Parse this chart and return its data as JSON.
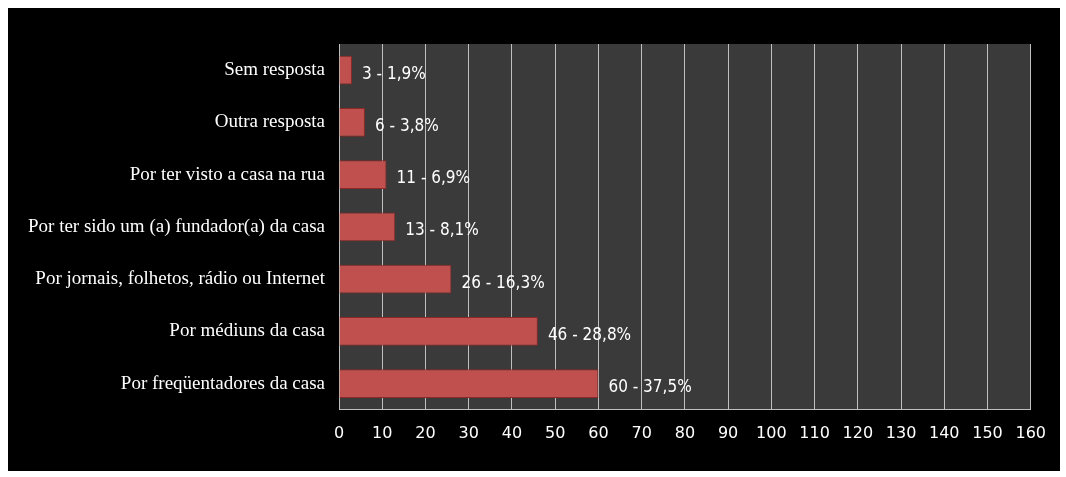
{
  "chart_data": {
    "type": "bar",
    "orientation": "horizontal",
    "categories": [
      "Sem resposta",
      "Outra resposta",
      "Por ter visto a casa na rua",
      "Por ter sido um (a) fundador(a) da casa",
      "Por jornais, folhetos, rádio ou Internet",
      "Por médiuns da casa",
      "Por freqüentadores da casa"
    ],
    "values": [
      3,
      6,
      11,
      13,
      26,
      46,
      60
    ],
    "color": "#c0504d",
    "value_labels": [
      "3 - 1,9%",
      "6 - 3,8%",
      "11 - 6,9%",
      "13 - 8,1%",
      "26 - 16,3%",
      "46 - 28,8%",
      "60 - 37,5%"
    ],
    "xlim": [
      0,
      160
    ],
    "xticks": [
      0,
      10,
      20,
      30,
      40,
      50,
      60,
      70,
      80,
      90,
      100,
      110,
      120,
      130,
      140,
      150,
      160
    ],
    "grid": "x",
    "legend": false
  }
}
